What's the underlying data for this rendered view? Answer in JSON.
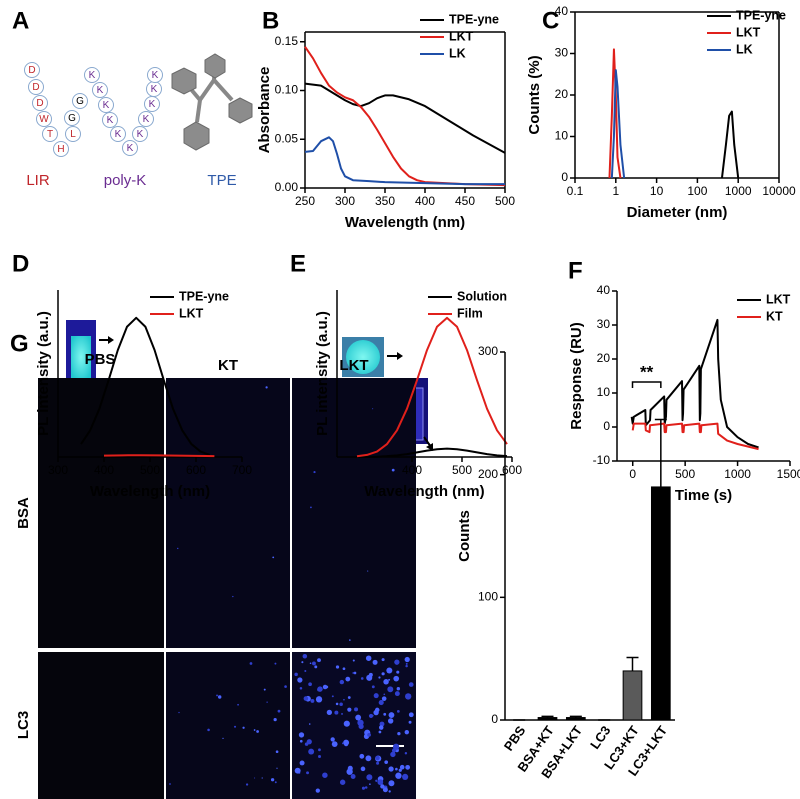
{
  "panel_labels": [
    "A",
    "B",
    "C",
    "D",
    "E",
    "F",
    "G"
  ],
  "panel_a": {
    "lir_residues": [
      "D",
      "D",
      "D",
      "W",
      "T",
      "H",
      "L"
    ],
    "linker_residues": [
      "G",
      "G"
    ],
    "polyk_residues": [
      "K",
      "K",
      "K",
      "K",
      "K",
      "K",
      "K",
      "K",
      "K",
      "K",
      "K"
    ],
    "labels": [
      "LIR",
      "poly-K",
      "TPE"
    ]
  },
  "panel_g_images": {
    "columns": [
      "PBS",
      "KT",
      "LKT"
    ],
    "rows": [
      "BSA",
      "LC3"
    ]
  },
  "chart_data": [
    {
      "type": "line",
      "xlabel": "Wavelength (nm)",
      "ylabel": "Absorbance",
      "xlim": [
        250,
        500
      ],
      "xticks": [
        250,
        300,
        350,
        400,
        450,
        500
      ],
      "ylim": [
        0,
        0.16
      ],
      "yticks": [
        {
          "value": 0,
          "label": "0.00"
        },
        {
          "value": 0.05,
          "label": "0.05"
        },
        {
          "value": 0.1,
          "label": "0.10"
        },
        {
          "value": 0.15,
          "label": "0.15"
        }
      ],
      "legend": "upper right",
      "series": [
        {
          "name": "TPE-yne",
          "color": "#000000",
          "x": [
            250,
            260,
            270,
            280,
            290,
            300,
            310,
            320,
            330,
            340,
            350,
            360,
            380,
            400,
            420,
            440,
            460,
            480,
            500
          ],
          "values": [
            0.107,
            0.106,
            0.105,
            0.1,
            0.095,
            0.09,
            0.086,
            0.084,
            0.087,
            0.092,
            0.095,
            0.095,
            0.091,
            0.084,
            0.074,
            0.064,
            0.054,
            0.045,
            0.036
          ]
        },
        {
          "name": "LKT",
          "color": "#e0201b",
          "x": [
            250,
            260,
            270,
            280,
            290,
            300,
            310,
            320,
            330,
            340,
            350,
            360,
            370,
            380,
            390,
            400,
            450,
            500
          ],
          "values": [
            0.145,
            0.133,
            0.118,
            0.105,
            0.098,
            0.093,
            0.09,
            0.083,
            0.073,
            0.06,
            0.046,
            0.032,
            0.02,
            0.012,
            0.008,
            0.006,
            0.004,
            0.003
          ]
        },
        {
          "name": "LK",
          "color": "#1f4fa8",
          "x": [
            250,
            260,
            270,
            280,
            285,
            290,
            295,
            300,
            310,
            330,
            350,
            400,
            450,
            500
          ],
          "values": [
            0.037,
            0.038,
            0.048,
            0.052,
            0.048,
            0.035,
            0.02,
            0.012,
            0.008,
            0.007,
            0.006,
            0.005,
            0.004,
            0.004
          ]
        }
      ]
    },
    {
      "type": "line",
      "xlabel": "Diameter (nm)",
      "ylabel": "Counts (%)",
      "xscale": "log",
      "xlim": [
        0.1,
        10000
      ],
      "xticks": [
        0.1,
        1,
        10,
        100,
        1000,
        10000
      ],
      "ylim": [
        0,
        40
      ],
      "yticks": [
        0,
        10,
        20,
        30,
        40
      ],
      "legend": "upper right",
      "series": [
        {
          "name": "TPE-yne",
          "color": "#000000",
          "x": [
            400,
            500,
            600,
            700,
            800,
            1000
          ],
          "values": [
            0,
            8,
            15,
            16,
            8,
            0
          ]
        },
        {
          "name": "LKT",
          "color": "#e0201b",
          "x": [
            0.7,
            0.8,
            0.9,
            1.0,
            1.1,
            1.3
          ],
          "values": [
            0,
            15,
            31,
            20,
            5,
            0
          ]
        },
        {
          "name": "LK",
          "color": "#1f4fa8",
          "x": [
            0.8,
            0.9,
            1.0,
            1.1,
            1.3,
            1.6
          ],
          "values": [
            0,
            10,
            26,
            22,
            8,
            0
          ]
        }
      ]
    },
    {
      "type": "line",
      "xlabel": "Wavelength (nm)",
      "ylabel": "PL intensity (a.u.)",
      "xlim": [
        300,
        700
      ],
      "xticks": [
        300,
        400,
        500,
        600,
        700
      ],
      "ylim": [
        0,
        1.2
      ],
      "legend": "upper right",
      "series": [
        {
          "name": "TPE-yne",
          "color": "#000000",
          "x": [
            350,
            370,
            390,
            410,
            430,
            450,
            470,
            490,
            510,
            530,
            550,
            570,
            590,
            610,
            630
          ],
          "values": [
            0.093,
            0.192,
            0.347,
            0.552,
            0.768,
            0.936,
            1,
            0.936,
            0.768,
            0.552,
            0.347,
            0.192,
            0.093,
            0.039,
            0.015
          ]
        },
        {
          "name": "LKT",
          "color": "#e0201b",
          "x": [
            400,
            440,
            480,
            520,
            560,
            600,
            640
          ],
          "values": [
            0.01,
            0.012,
            0.013,
            0.012,
            0.01,
            0.008,
            0.006
          ]
        }
      ]
    },
    {
      "type": "line",
      "xlabel": "Wavelength (nm)",
      "ylabel": "PL intensity (a.u.)",
      "xlim": [
        250,
        600
      ],
      "xticks": [
        400,
        500,
        600
      ],
      "ylim": [
        0,
        1.2
      ],
      "legend": "upper right",
      "series": [
        {
          "name": "Solution",
          "color": "#000000",
          "x": [
            290,
            310,
            330,
            350,
            370,
            390,
            410,
            430,
            450,
            470,
            490,
            510,
            530,
            550,
            570,
            590
          ],
          "values": [
            0,
            0.001,
            0.002,
            0.006,
            0.012,
            0.021,
            0.033,
            0.046,
            0.056,
            0.06,
            0.056,
            0.046,
            0.033,
            0.021,
            0.012,
            0.006
          ]
        },
        {
          "name": "Film",
          "color": "#e0201b",
          "x": [
            290,
            310,
            330,
            350,
            370,
            390,
            410,
            430,
            450,
            470,
            490,
            510,
            530,
            550,
            570,
            590
          ],
          "values": [
            0.005,
            0.015,
            0.039,
            0.093,
            0.192,
            0.347,
            0.552,
            0.768,
            0.936,
            1,
            0.936,
            0.768,
            0.552,
            0.347,
            0.192,
            0.093
          ]
        }
      ]
    },
    {
      "type": "line",
      "xlabel": "Time (s)",
      "ylabel": "Response (RU)",
      "xlim": [
        -150,
        1500
      ],
      "xticks": [
        0,
        500,
        1000,
        1500
      ],
      "ylim": [
        -10,
        40
      ],
      "yticks": [
        -10,
        0,
        10,
        20,
        30,
        40
      ],
      "legend": "upper right",
      "series": [
        {
          "name": "LKT",
          "color": "#000000",
          "x": [
            -10,
            0,
            10,
            120,
            125,
            165,
            170,
            300,
            305,
            317,
            322,
            470,
            475,
            480,
            485,
            635,
            640,
            645,
            650,
            808,
            815,
            840,
            900,
            1000,
            1100,
            1200
          ],
          "values": [
            3,
            1,
            3,
            5,
            0.5,
            2,
            5,
            9,
            1,
            3,
            8,
            13.5,
            2,
            4,
            11,
            18,
            2,
            4,
            17,
            31.5,
            20,
            8,
            0,
            -3,
            -5,
            -6
          ]
        },
        {
          "name": "KT",
          "color": "#e0201b",
          "x": [
            0,
            10,
            120,
            125,
            160,
            165,
            300,
            305,
            317,
            322,
            470,
            475,
            485,
            490,
            635,
            640,
            650,
            655,
            808,
            815,
            900,
            1000,
            1200
          ],
          "values": [
            -1,
            1,
            1,
            -1,
            -1.5,
            0.5,
            1,
            -1.5,
            -1.5,
            0.5,
            1,
            -1.5,
            -1.5,
            0.5,
            1,
            -1.5,
            -1.5,
            0.5,
            1,
            -2,
            -4,
            -5,
            -6.5
          ]
        }
      ]
    },
    {
      "type": "bar",
      "ylabel": "Counts",
      "annotation": "**",
      "categories": [
        "PBS",
        "BSA+KT",
        "BSA+LKT",
        "LC3",
        "LC3+KT",
        "LC3+LKT"
      ],
      "ylim": [
        0,
        300
      ],
      "yticks": [
        0,
        100,
        200,
        300
      ],
      "values": [
        0,
        2,
        2,
        0,
        40,
        190
      ],
      "errors": [
        0,
        1,
        1,
        0,
        11,
        55
      ],
      "colors": [
        "#000000",
        "#000000",
        "#000000",
        "#000000",
        "#5a5a5a",
        "#000000"
      ]
    }
  ]
}
